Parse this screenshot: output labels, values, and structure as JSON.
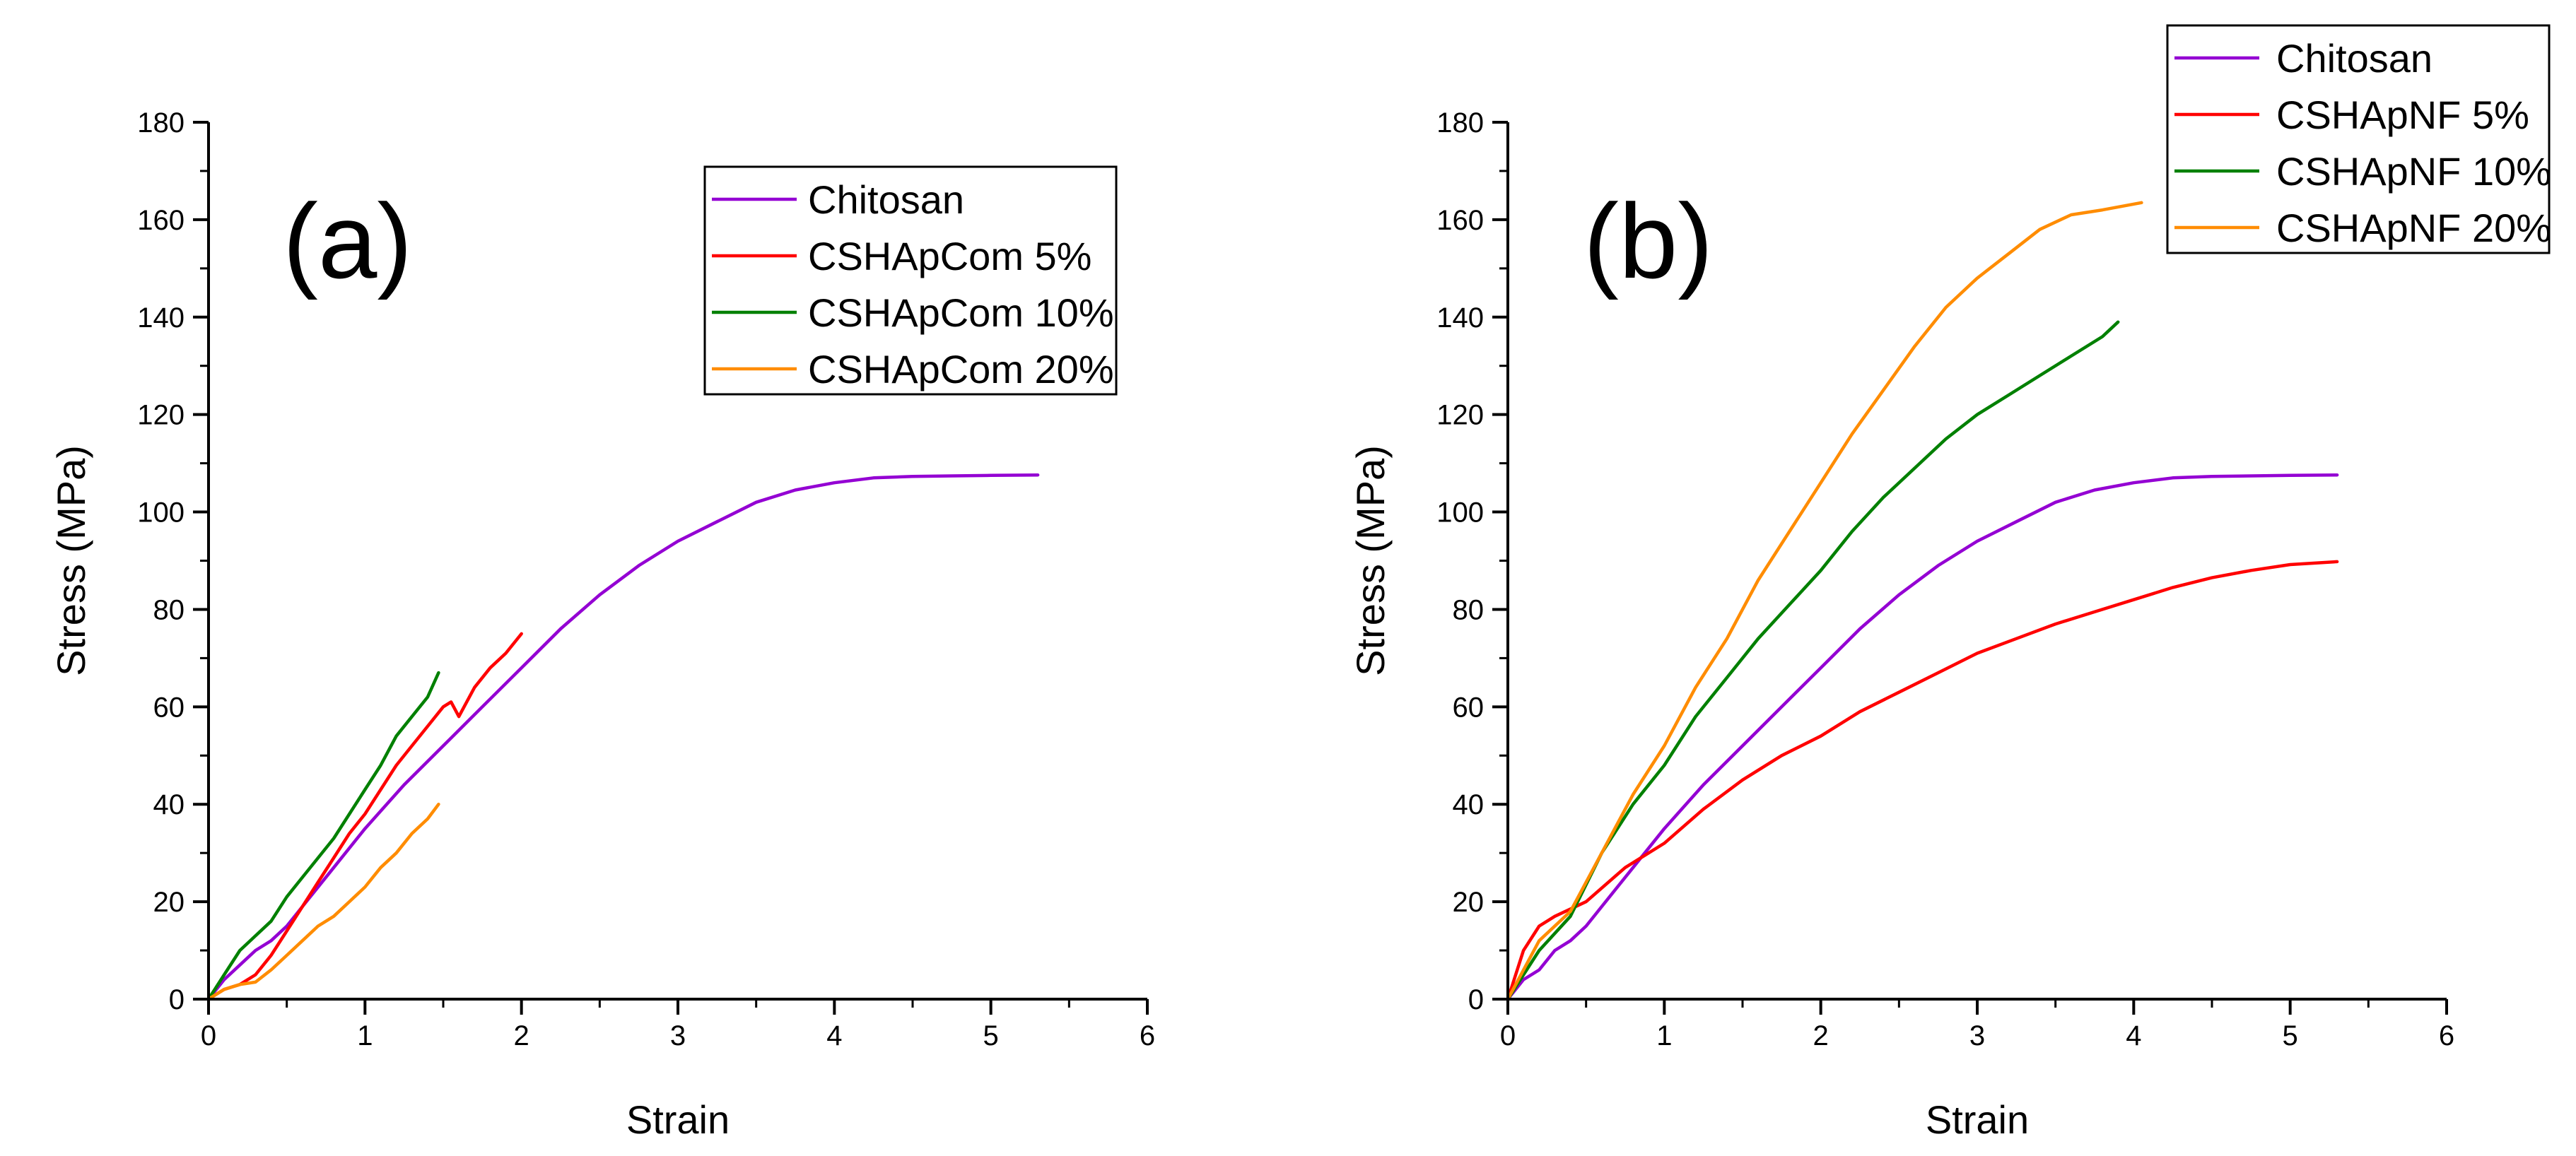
{
  "chart_data": [
    {
      "type": "line",
      "panel_label": "(a)",
      "xlabel": "Strain",
      "ylabel": "Stress (MPa)",
      "xlim": [
        0,
        6
      ],
      "ylim": [
        0,
        180
      ],
      "xticks": [
        0,
        1,
        2,
        3,
        4,
        5,
        6
      ],
      "yticks": [
        0,
        20,
        40,
        60,
        80,
        100,
        120,
        140,
        160,
        180
      ],
      "legend_position": "top-right",
      "series": [
        {
          "name": "Chitosan",
          "color": "#9400d3",
          "x": [
            0,
            0.1,
            0.2,
            0.3,
            0.4,
            0.5,
            0.6,
            0.8,
            1.0,
            1.25,
            1.5,
            1.75,
            2.0,
            2.25,
            2.5,
            2.75,
            3.0,
            3.25,
            3.5,
            3.75,
            4.0,
            4.25,
            4.5,
            4.75,
            5.0,
            5.3
          ],
          "y": [
            0,
            4,
            7,
            10,
            12,
            15,
            19,
            27,
            35,
            44,
            52,
            60,
            68,
            76,
            83,
            89,
            94,
            98,
            102,
            104.5,
            106,
            107,
            107.3,
            107.4,
            107.5,
            107.6
          ]
        },
        {
          "name": "CSHApCom 5%",
          "color": "#ff0000",
          "x": [
            0,
            0.1,
            0.2,
            0.3,
            0.4,
            0.5,
            0.6,
            0.7,
            0.8,
            0.9,
            1.0,
            1.1,
            1.2,
            1.3,
            1.4,
            1.5,
            1.55,
            1.6,
            1.65,
            1.7,
            1.8,
            1.9,
            2.0
          ],
          "y": [
            0,
            2,
            3,
            5,
            9,
            14,
            19,
            24,
            29,
            34,
            38,
            43,
            48,
            52,
            56,
            60,
            61,
            58,
            61,
            64,
            68,
            71,
            75
          ]
        },
        {
          "name": "CSHApCom 10%",
          "color": "#008000",
          "x": [
            0,
            0.1,
            0.2,
            0.3,
            0.4,
            0.5,
            0.6,
            0.7,
            0.8,
            0.9,
            1.0,
            1.1,
            1.2,
            1.3,
            1.4,
            1.47
          ],
          "y": [
            0,
            5,
            10,
            13,
            16,
            21,
            25,
            29,
            33,
            38,
            43,
            48,
            54,
            58,
            62,
            67
          ]
        },
        {
          "name": "CSHApCom 20%",
          "color": "#ff8c00",
          "x": [
            0,
            0.1,
            0.2,
            0.3,
            0.4,
            0.5,
            0.6,
            0.7,
            0.8,
            0.9,
            1.0,
            1.1,
            1.2,
            1.3,
            1.4,
            1.47
          ],
          "y": [
            0,
            2,
            3,
            3.5,
            6,
            9,
            12,
            15,
            17,
            20,
            23,
            27,
            30,
            34,
            37,
            40
          ]
        }
      ]
    },
    {
      "type": "line",
      "panel_label": "(b)",
      "xlabel": "Strain",
      "ylabel": "Stress (MPa)",
      "xlim": [
        0,
        6
      ],
      "ylim": [
        0,
        180
      ],
      "xticks": [
        0,
        1,
        2,
        3,
        4,
        5,
        6
      ],
      "yticks": [
        0,
        20,
        40,
        60,
        80,
        100,
        120,
        140,
        160,
        180
      ],
      "legend_position": "top-right",
      "series": [
        {
          "name": "Chitosan",
          "color": "#9400d3",
          "x": [
            0,
            0.1,
            0.2,
            0.3,
            0.4,
            0.5,
            0.6,
            0.8,
            1.0,
            1.25,
            1.5,
            1.75,
            2.0,
            2.25,
            2.5,
            2.75,
            3.0,
            3.25,
            3.5,
            3.75,
            4.0,
            4.25,
            4.5,
            4.75,
            5.0,
            5.3
          ],
          "y": [
            0,
            4,
            6,
            10,
            12,
            15,
            19,
            27,
            35,
            44,
            52,
            60,
            68,
            76,
            83,
            89,
            94,
            98,
            102,
            104.5,
            106,
            107,
            107.3,
            107.4,
            107.5,
            107.6
          ]
        },
        {
          "name": "CSHApNF 5%",
          "color": "#ff0000",
          "x": [
            0,
            0.1,
            0.2,
            0.3,
            0.5,
            0.75,
            1.0,
            1.25,
            1.5,
            1.75,
            2.0,
            2.25,
            2.5,
            2.75,
            3.0,
            3.25,
            3.5,
            3.75,
            4.0,
            4.25,
            4.5,
            4.75,
            5.0,
            5.3
          ],
          "y": [
            0,
            10,
            15,
            17,
            20,
            27,
            32,
            39,
            45,
            50,
            54,
            59,
            63,
            67,
            71,
            74,
            77,
            79.5,
            82,
            84.5,
            86.5,
            88,
            89.2,
            89.8
          ]
        },
        {
          "name": "CSHApNF 10%",
          "color": "#008000",
          "x": [
            0,
            0.2,
            0.4,
            0.6,
            0.8,
            1.0,
            1.2,
            1.4,
            1.6,
            1.8,
            2.0,
            2.2,
            2.4,
            2.6,
            2.8,
            3.0,
            3.2,
            3.4,
            3.6,
            3.8,
            3.9
          ],
          "y": [
            0,
            10,
            17,
            30,
            40,
            48,
            58,
            66,
            74,
            81,
            88,
            96,
            103,
            109,
            115,
            120,
            124,
            128,
            132,
            136,
            139
          ]
        },
        {
          "name": "CSHApNF 20%",
          "color": "#ff8c00",
          "x": [
            0,
            0.2,
            0.4,
            0.6,
            0.8,
            1.0,
            1.2,
            1.4,
            1.6,
            1.8,
            2.0,
            2.2,
            2.4,
            2.6,
            2.8,
            3.0,
            3.2,
            3.4,
            3.6,
            3.8,
            4.05
          ],
          "y": [
            0,
            12,
            18,
            30,
            42,
            52,
            64,
            74,
            86,
            96,
            106,
            116,
            125,
            134,
            142,
            148,
            153,
            158,
            161,
            162,
            163.5
          ]
        }
      ]
    }
  ]
}
